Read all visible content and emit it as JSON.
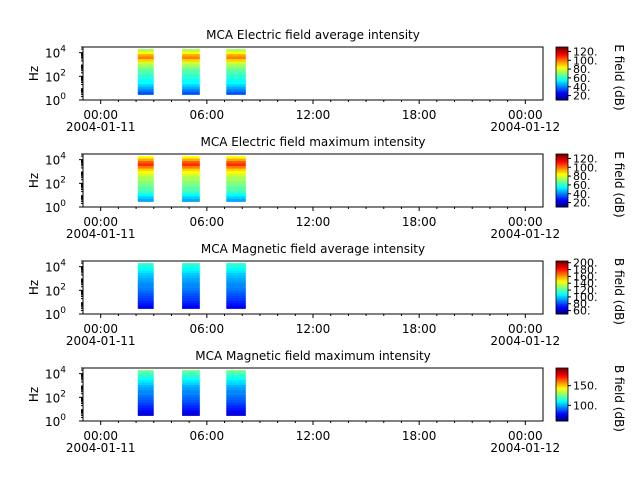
{
  "chart_data": [
    {
      "type": "heatmap",
      "title": "MCA  Electric field average intensity",
      "ylabel": "Hz",
      "colorbar_label": "E field (dB)",
      "colorbar_ticks": [
        "20.",
        "40.",
        "60.",
        "80.",
        "100.",
        "120."
      ],
      "colorbar_range": [
        10,
        130
      ],
      "y_scale": "log",
      "y_ticks": [
        "10",
        "10",
        "10"
      ],
      "y_tick_exponents": [
        "0",
        "2",
        "4"
      ],
      "ylim_hz": [
        1,
        30000
      ],
      "x_ticks": [
        "00:00",
        "06:00",
        "12:00",
        "18:00",
        "00:00"
      ],
      "x_dates": [
        "2004-01-11",
        "2004-01-12"
      ],
      "xlim_hours": [
        -1,
        25
      ],
      "frequency_range_hz": [
        3,
        20000
      ],
      "passes": [
        {
          "start_h": 2.1,
          "end_h": 3.0,
          "profile": [
            75,
            85,
            95,
            100,
            90,
            80,
            75,
            70,
            65,
            65,
            60,
            60,
            55,
            55,
            50,
            45,
            40,
            35
          ]
        },
        {
          "start_h": 4.6,
          "end_h": 5.6,
          "profile": [
            75,
            85,
            95,
            100,
            90,
            80,
            75,
            70,
            65,
            65,
            60,
            60,
            55,
            55,
            50,
            45,
            40,
            35
          ]
        },
        {
          "start_h": 7.1,
          "end_h": 8.2,
          "profile": [
            75,
            85,
            95,
            100,
            90,
            80,
            75,
            70,
            65,
            65,
            60,
            60,
            55,
            55,
            50,
            45,
            40,
            35
          ]
        }
      ]
    },
    {
      "type": "heatmap",
      "title": "MCA  Electric field maximum intensity",
      "ylabel": "Hz",
      "colorbar_label": "E field (dB)",
      "colorbar_ticks": [
        "20.",
        "40.",
        "60.",
        "80.",
        "100.",
        "120."
      ],
      "colorbar_range": [
        10,
        130
      ],
      "y_scale": "log",
      "y_ticks": [
        "10",
        "10",
        "10"
      ],
      "y_tick_exponents": [
        "0",
        "2",
        "4"
      ],
      "ylim_hz": [
        1,
        30000
      ],
      "x_ticks": [
        "00:00",
        "06:00",
        "12:00",
        "18:00",
        "00:00"
      ],
      "x_dates": [
        "2004-01-11",
        "2004-01-12"
      ],
      "xlim_hours": [
        -1,
        25
      ],
      "frequency_range_hz": [
        3,
        20000
      ],
      "passes": [
        {
          "start_h": 2.1,
          "end_h": 3.0,
          "profile": [
            85,
            95,
            105,
            110,
            100,
            90,
            85,
            80,
            75,
            75,
            70,
            70,
            65,
            65,
            60,
            55,
            50,
            45
          ]
        },
        {
          "start_h": 4.6,
          "end_h": 5.6,
          "profile": [
            85,
            95,
            105,
            110,
            100,
            90,
            85,
            80,
            75,
            75,
            70,
            70,
            65,
            65,
            60,
            55,
            50,
            45
          ]
        },
        {
          "start_h": 7.1,
          "end_h": 8.2,
          "profile": [
            85,
            95,
            105,
            110,
            100,
            90,
            85,
            80,
            75,
            75,
            70,
            70,
            65,
            65,
            60,
            55,
            50,
            45
          ]
        }
      ]
    },
    {
      "type": "heatmap",
      "title": "MCA  Magnetic field average intensity",
      "ylabel": "Hz",
      "colorbar_label": "B field (dB)",
      "colorbar_ticks": [
        "60.",
        "80.",
        "100.",
        "120.",
        "140.",
        "160.",
        "180.",
        "200."
      ],
      "colorbar_range": [
        50,
        205
      ],
      "y_scale": "log",
      "y_ticks": [
        "10",
        "10",
        "10"
      ],
      "y_tick_exponents": [
        "0",
        "2",
        "4"
      ],
      "ylim_hz": [
        1,
        30000
      ],
      "x_ticks": [
        "00:00",
        "06:00",
        "12:00",
        "18:00",
        "00:00"
      ],
      "x_dates": [
        "2004-01-11",
        "2004-01-12"
      ],
      "xlim_hours": [
        -1,
        25
      ],
      "frequency_range_hz": [
        3,
        20000
      ],
      "passes": [
        {
          "start_h": 2.1,
          "end_h": 3.0,
          "profile": [
            115,
            112,
            108,
            105,
            100,
            98,
            95,
            93,
            90,
            90,
            88,
            85,
            82,
            80,
            78,
            75,
            72,
            68
          ]
        },
        {
          "start_h": 4.6,
          "end_h": 5.6,
          "profile": [
            115,
            112,
            108,
            105,
            100,
            98,
            95,
            93,
            90,
            90,
            88,
            85,
            82,
            80,
            78,
            75,
            72,
            68
          ]
        },
        {
          "start_h": 7.1,
          "end_h": 8.2,
          "profile": [
            115,
            112,
            108,
            105,
            100,
            98,
            95,
            93,
            90,
            90,
            88,
            85,
            82,
            80,
            78,
            75,
            72,
            68
          ]
        }
      ]
    },
    {
      "type": "heatmap",
      "title": "MCA  Magnetic field maximum intensity",
      "ylabel": "Hz",
      "colorbar_label": "B field (dB)",
      "colorbar_ticks": [
        "100.",
        "150."
      ],
      "colorbar_range": [
        60,
        195
      ],
      "y_scale": "log",
      "y_ticks": [
        "10",
        "10",
        "10"
      ],
      "y_tick_exponents": [
        "0",
        "2",
        "4"
      ],
      "ylim_hz": [
        1,
        30000
      ],
      "x_ticks": [
        "00:00",
        "06:00",
        "12:00",
        "18:00",
        "00:00"
      ],
      "x_dates": [
        "2004-01-11",
        "2004-01-12"
      ],
      "xlim_hours": [
        -1,
        25
      ],
      "frequency_range_hz": [
        3,
        20000
      ],
      "passes": [
        {
          "start_h": 2.1,
          "end_h": 3.0,
          "profile": [
            125,
            120,
            115,
            112,
            108,
            105,
            100,
            98,
            95,
            95,
            92,
            90,
            88,
            85,
            82,
            80,
            76,
            72
          ]
        },
        {
          "start_h": 4.6,
          "end_h": 5.6,
          "profile": [
            125,
            120,
            115,
            112,
            108,
            105,
            100,
            98,
            95,
            95,
            92,
            90,
            88,
            85,
            82,
            80,
            76,
            72
          ]
        },
        {
          "start_h": 7.1,
          "end_h": 8.2,
          "profile": [
            125,
            120,
            115,
            112,
            108,
            105,
            100,
            98,
            95,
            95,
            92,
            90,
            88,
            85,
            82,
            80,
            76,
            72
          ]
        }
      ]
    }
  ]
}
